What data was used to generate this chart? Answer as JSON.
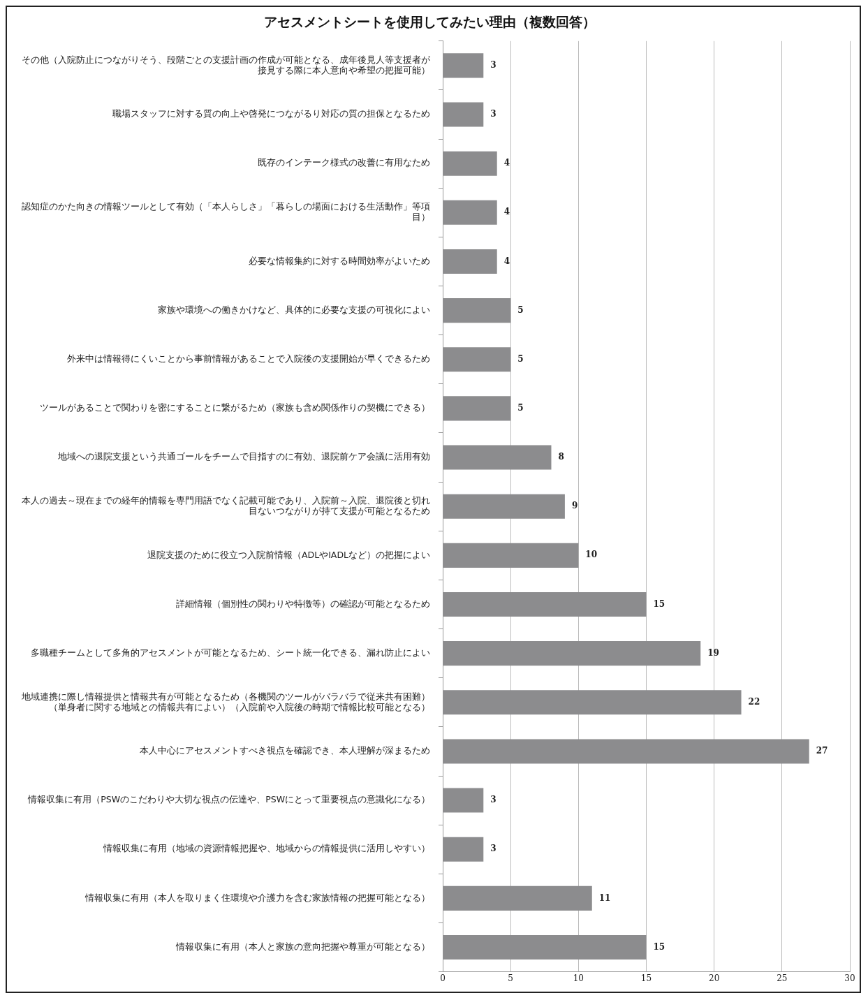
{
  "chart_data": {
    "type": "bar",
    "orientation": "horizontal",
    "title": "アセスメントシートを使用してみたい理由（複数回答）",
    "categories": [
      "その他（入院防止につながりそう、段階ごとの支援計画の作成が可能となる、成年後見人等支援者が接見する際に本人意向や希望の把握可能）",
      "職場スタッフに対する質の向上や啓発につながるり対応の質の担保となるため",
      "既存のインテーク様式の改善に有用なため",
      "認知症のかた向きの情報ツールとして有効（「本人らしさ」「暮らしの場面における生活動作」等項目）",
      "必要な情報集約に対する時間効率がよいため",
      "家族や環境への働きかけなど、具体的に必要な支援の可視化によい",
      "外来中は情報得にくいことから事前情報があることで入院後の支援開始が早くできるため",
      "ツールがあることで関わりを密にすることに繋がるため（家族も含め関係作りの契機にできる）",
      "地域への退院支援という共通ゴールをチームで目指すのに有効、退院前ケア会議に活用有効",
      "本人の過去～現在までの経年的情報を専門用語でなく記載可能であり、入院前～入院、退院後と切れ目ないつながりが持て支援が可能となるため",
      "退院支援のために役立つ入院前情報（ADLやIADLなど）の把握によい",
      "詳細情報（個別性の関わりや特徴等）の確認が可能となるため",
      "多職種チームとして多角的アセスメントが可能となるため、シート統一化できる、漏れ防止によい",
      "地域連携に際し情報提供と情報共有が可能となるため（各機関のツールがバラバラで従来共有困難）（単身者に関する地域との情報共有によい）（入院前や入院後の時期で情報比較可能となる）",
      "本人中心にアセスメントすべき視点を確認でき、本人理解が深まるため",
      "情報収集に有用（PSWのこだわりや大切な視点の伝達や、PSWにとって重要視点の意識化になる）",
      "情報収集に有用（地域の資源情報把握や、地域からの情報提供に活用しやすい）",
      "情報収集に有用（本人を取りまく住環境や介護力を含む家族情報の把握可能となる）",
      "情報収集に有用（本人と家族の意向把握や尊重が可能となる）"
    ],
    "values": [
      3,
      3,
      4,
      4,
      4,
      5,
      5,
      5,
      8,
      9,
      10,
      15,
      19,
      22,
      27,
      3,
      3,
      11,
      15
    ],
    "color": "#8c8c8e",
    "xlim": [
      0,
      30
    ],
    "xticks": [
      0,
      5,
      10,
      15,
      20,
      25,
      30
    ],
    "grid": "x",
    "data_labels": true,
    "legend": false
  }
}
